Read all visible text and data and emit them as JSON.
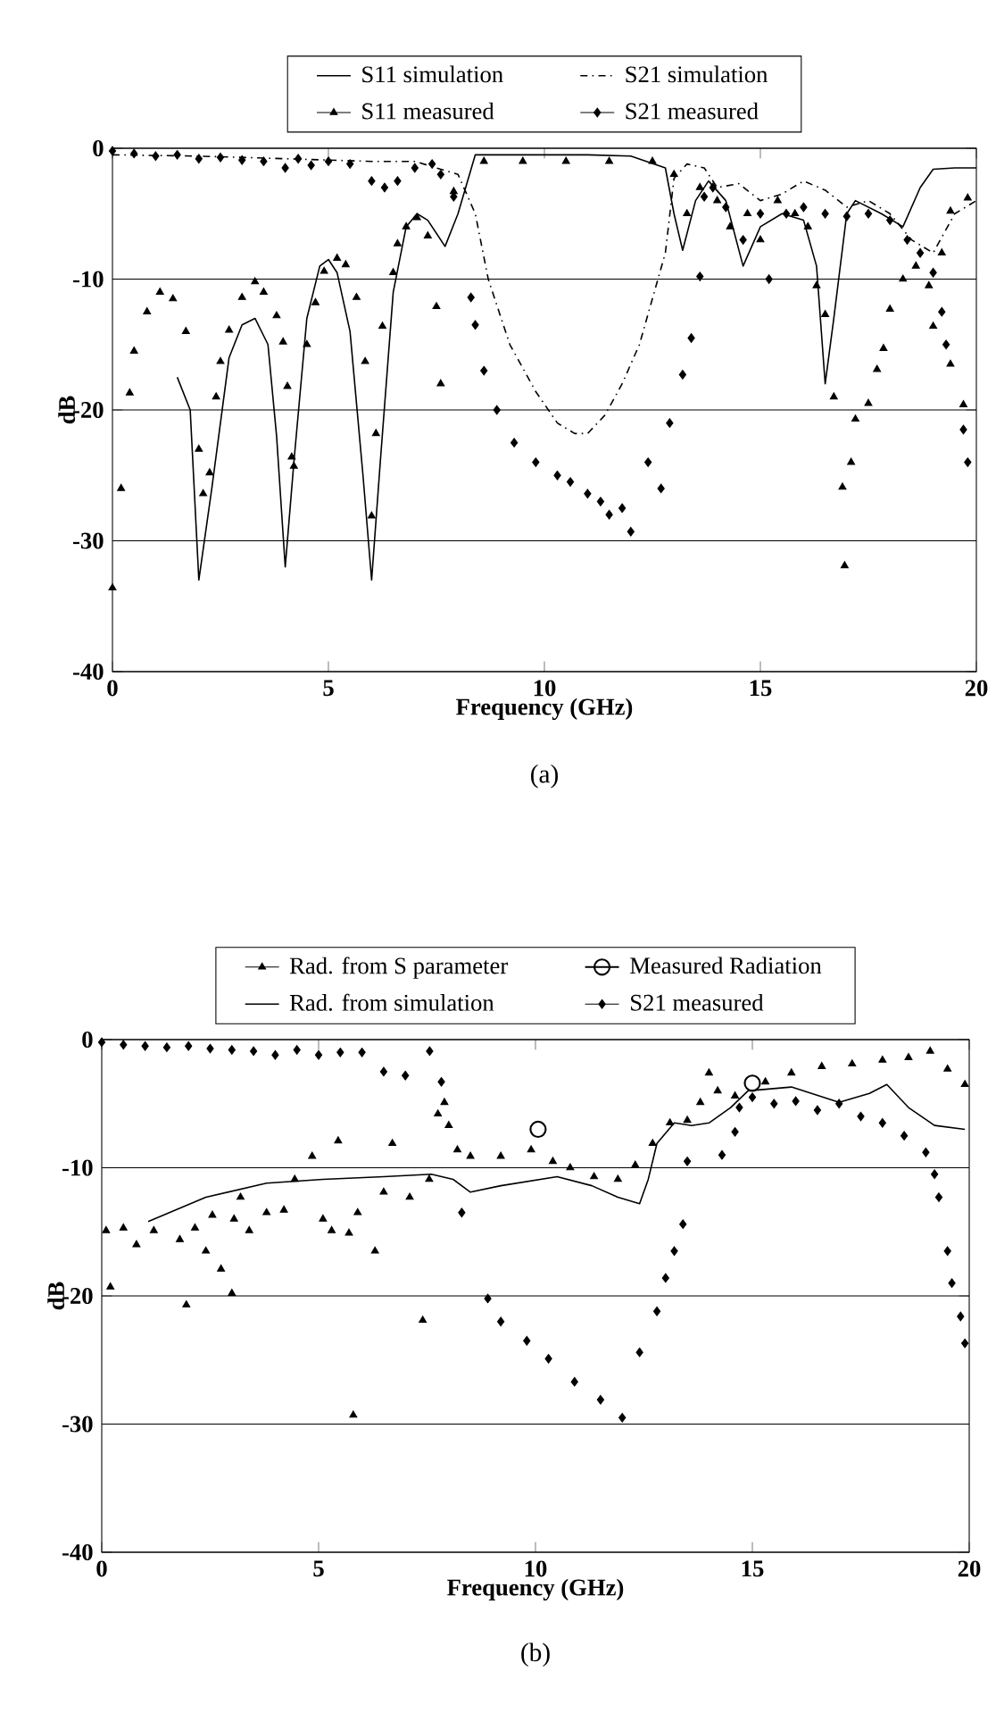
{
  "chart_data": [
    {
      "type": "line",
      "xlabel": "Frequency (GHz)",
      "ylabel": "dB",
      "xlim": [
        0,
        20
      ],
      "ylim": [
        -40,
        0
      ],
      "xticks": [
        0,
        5,
        10,
        15,
        20
      ],
      "yticks": [
        -40,
        -30,
        -20,
        -10,
        0
      ],
      "grid": "y",
      "legend": "top",
      "annotations": [
        "(a)"
      ],
      "series": [
        {
          "name": "S11 simulation",
          "line_style": "solid",
          "color": "#000000",
          "x": [
            1.5,
            1.8,
            2.0,
            2.3,
            2.7,
            3.0,
            3.3,
            3.6,
            3.8,
            4.0,
            4.2,
            4.5,
            4.8,
            5.0,
            5.2,
            5.5,
            5.8,
            6.0,
            6.2,
            6.5,
            6.8,
            7.05,
            7.3,
            7.7,
            8.0,
            8.4,
            9.0,
            10.0,
            11.0,
            12.0,
            12.8,
            13.0,
            13.2,
            13.5,
            13.8,
            14.2,
            14.6,
            15.0,
            15.5,
            16.0,
            16.3,
            16.5,
            16.7,
            17.0,
            17.2,
            17.8,
            18.3,
            18.7,
            19.0,
            19.5,
            20.0
          ],
          "values": [
            -17.5,
            -20,
            -33,
            -26,
            -16,
            -13.5,
            -13,
            -15,
            -22,
            -32,
            -24,
            -13,
            -9,
            -8.5,
            -9.5,
            -14,
            -25,
            -33,
            -24,
            -11,
            -6,
            -5,
            -5.5,
            -7.5,
            -5,
            -0.5,
            -0.5,
            -0.5,
            -0.5,
            -0.6,
            -1.5,
            -5,
            -7.8,
            -4,
            -2.5,
            -4,
            -9,
            -6,
            -5,
            -5.5,
            -9,
            -18,
            -13,
            -5,
            -4,
            -5,
            -6,
            -3,
            -1.6,
            -1.5,
            -1.5
          ]
        },
        {
          "name": "S21 simulation",
          "line_style": "dashed",
          "color": "#000000",
          "x": [
            0,
            2,
            4,
            6,
            7,
            8,
            8.4,
            8.7,
            9.2,
            9.8,
            10.3,
            10.7,
            11.0,
            11.4,
            11.8,
            12.2,
            12.5,
            12.8,
            13.0,
            13.3,
            13.7,
            14.0,
            14.5,
            15.0,
            15.5,
            16.0,
            16.5,
            17.0,
            17.5,
            18.0,
            18.5,
            19.0,
            19.5,
            20.0
          ],
          "values": [
            -0.5,
            -0.6,
            -0.8,
            -1.0,
            -1.0,
            -2,
            -5,
            -10,
            -15,
            -18.6,
            -21,
            -21.8,
            -21.8,
            -20.4,
            -18,
            -15,
            -11.5,
            -8,
            -2.3,
            -1.2,
            -1.5,
            -3,
            -2.7,
            -4,
            -3.5,
            -2.5,
            -3.2,
            -4.5,
            -4,
            -5,
            -7,
            -8,
            -5,
            -4
          ]
        },
        {
          "name": "S11 measured",
          "type": "scatter",
          "marker": "triangle",
          "color": "#000000",
          "x": [
            0.0,
            0.2,
            0.4,
            0.5,
            0.8,
            1.1,
            1.4,
            1.7,
            2.0,
            2.1,
            2.25,
            2.4,
            2.5,
            2.7,
            3.0,
            3.3,
            3.5,
            3.8,
            3.95,
            4.05,
            4.15,
            4.2,
            4.5,
            4.7,
            4.9,
            5.2,
            5.4,
            5.65,
            5.85,
            6.0,
            6.1,
            6.25,
            6.5,
            6.6,
            6.8,
            7.05,
            7.3,
            7.5,
            7.6,
            7.9,
            8.6,
            9.5,
            10.5,
            11.5,
            12.5,
            13.0,
            13.3,
            13.6,
            14.0,
            14.3,
            14.7,
            15.0,
            15.4,
            15.8,
            16.1,
            16.3,
            16.5,
            16.7,
            16.9,
            16.95,
            17.1,
            17.2,
            17.5,
            17.7,
            17.85,
            18.0,
            18.3,
            18.6,
            18.9,
            19.0,
            19.2,
            19.4,
            19.4,
            19.7,
            19.8
          ],
          "values": [
            -33.6,
            -26,
            -18.7,
            -15.5,
            -12.5,
            -11,
            -11.5,
            -14,
            -23,
            -26.4,
            -24.8,
            -19,
            -16.3,
            -13.9,
            -11.4,
            -10.2,
            -11,
            -12.8,
            -14.8,
            -18.2,
            -23.6,
            -24.3,
            -15,
            -11.8,
            -9.4,
            -8.4,
            -8.9,
            -11.4,
            -16.3,
            -28.1,
            -21.8,
            -13.6,
            -9.5,
            -7.3,
            -6,
            -5.3,
            -6.7,
            -12.1,
            -18,
            -3.3,
            -1,
            -1,
            -1,
            -1,
            -1,
            -2,
            -5,
            -3,
            -4,
            -6,
            -5,
            -7,
            -4,
            -5,
            -6,
            -10.5,
            -12.7,
            -19,
            -25.9,
            -31.9,
            -24,
            -20.7,
            -19.5,
            -16.9,
            -15.3,
            -12.3,
            -10,
            -9,
            -10.5,
            -13.6,
            -8,
            -16.5,
            -4.8,
            -19.6,
            -3.8
          ]
        },
        {
          "name": "S21 measured",
          "type": "scatter",
          "marker": "diamond",
          "color": "#000000",
          "x": [
            0,
            0.5,
            1,
            1.5,
            2,
            2.5,
            3,
            3.5,
            4,
            4.3,
            4.6,
            5,
            5.5,
            6,
            6.3,
            6.6,
            7,
            7.4,
            7.6,
            7.9,
            8.3,
            8.4,
            8.6,
            8.9,
            9.3,
            9.8,
            10.3,
            10.6,
            11.0,
            11.3,
            11.5,
            11.8,
            12.0,
            12.4,
            12.7,
            12.9,
            13.2,
            13.4,
            13.6,
            13.7,
            13.9,
            14.2,
            14.6,
            15.0,
            15.2,
            15.6,
            16.0,
            16.5,
            17.0,
            17.5,
            18.0,
            18.4,
            18.7,
            19.0,
            19.2,
            19.3,
            19.7,
            19.8
          ],
          "values": [
            -0.2,
            -0.4,
            -0.6,
            -0.5,
            -0.8,
            -0.7,
            -0.9,
            -1.0,
            -1.5,
            -0.8,
            -1.3,
            -1.0,
            -1.2,
            -2.5,
            -3,
            -2.5,
            -1.5,
            -1.2,
            -2,
            -3.7,
            -11.4,
            -13.5,
            -17,
            -20,
            -22.5,
            -24,
            -25,
            -25.5,
            -26.4,
            -27,
            -28,
            -27.5,
            -29.3,
            -24,
            -26,
            -21,
            -17.3,
            -14.5,
            -9.8,
            -3.7,
            -3,
            -4.5,
            -7,
            -5,
            -10,
            -5,
            -4.5,
            -5,
            -5.2,
            -5,
            -5.5,
            -7,
            -8,
            -9.5,
            -12.5,
            -15,
            -21.5,
            -24
          ]
        }
      ]
    },
    {
      "type": "line",
      "xlabel": "Frequency (GHz)",
      "ylabel": "dB",
      "xlim": [
        0,
        20
      ],
      "ylim": [
        -40,
        0
      ],
      "xticks": [
        0,
        5,
        10,
        15,
        20
      ],
      "yticks": [
        -40,
        -30,
        -20,
        -10,
        0
      ],
      "grid": "y",
      "legend": "top",
      "annotations": [
        "(b)"
      ],
      "series": [
        {
          "name": "Rad. from S parameter",
          "type": "scatter",
          "marker": "triangle",
          "color": "#000000",
          "x": [
            0.1,
            0.2,
            0.5,
            0.8,
            1.2,
            1.8,
            1.95,
            2.15,
            2.4,
            2.55,
            2.75,
            3.0,
            3.05,
            3.2,
            3.4,
            3.8,
            4.2,
            4.45,
            4.85,
            5.1,
            5.3,
            5.45,
            5.7,
            5.8,
            5.9,
            6.3,
            6.5,
            6.7,
            7.1,
            7.4,
            7.55,
            7.75,
            7.9,
            8.0,
            8.2,
            8.5,
            9.2,
            9.9,
            10.4,
            10.8,
            11.35,
            11.9,
            12.3,
            12.7,
            13.1,
            13.5,
            13.8,
            14.0,
            14.2,
            14.6,
            15.3,
            15.9,
            16.6,
            17.3,
            18.0,
            18.6,
            19.1,
            19.5,
            19.9
          ],
          "values": [
            -14.9,
            -19.3,
            -14.7,
            -16,
            -14.9,
            -15.6,
            -20.7,
            -14.7,
            -16.5,
            -13.7,
            -17.9,
            -19.8,
            -14,
            -12.3,
            -14.9,
            -13.5,
            -13.3,
            -10.9,
            -9.1,
            -14,
            -14.9,
            -7.9,
            -15.1,
            -29.3,
            -13.5,
            -16.5,
            -11.9,
            -8.1,
            -12.3,
            -21.9,
            -10.9,
            -5.8,
            -4.9,
            -6.7,
            -8.6,
            -9.1,
            -9.1,
            -8.6,
            -9.5,
            -10,
            -10.7,
            -10.9,
            -9.8,
            -8.1,
            -6.5,
            -6.3,
            -4.9,
            -2.6,
            -4,
            -4.4,
            -3.3,
            -2.6,
            -2.1,
            -1.9,
            -1.6,
            -1.4,
            -0.9,
            -2.3,
            -3.5
          ]
        },
        {
          "name": "Measured Radiation",
          "type": "scatter",
          "marker": "circle",
          "color": "#000000",
          "x": [
            10.06,
            15.0
          ],
          "values": [
            -7.0,
            -3.4
          ]
        },
        {
          "name": "Rad. from simulation",
          "line_style": "solid",
          "color": "#000000",
          "x": [
            1.07,
            2.4,
            3.8,
            5.1,
            6.5,
            7.6,
            8.1,
            8.5,
            9.2,
            10.5,
            11.3,
            11.9,
            12.4,
            12.6,
            12.8,
            13.2,
            13.6,
            14.0,
            14.5,
            14.9,
            15.9,
            17.0,
            17.7,
            18.1,
            18.6,
            19.2,
            19.9
          ],
          "values": [
            -14.2,
            -12.3,
            -11.2,
            -10.9,
            -10.7,
            -10.5,
            -10.9,
            -11.9,
            -11.4,
            -10.7,
            -11.4,
            -12.3,
            -12.8,
            -10.9,
            -8.1,
            -6.5,
            -6.7,
            -6.5,
            -5.3,
            -4,
            -3.7,
            -4.9,
            -4.2,
            -3.5,
            -5.3,
            -6.7,
            -7
          ]
        },
        {
          "name": "S21 measured",
          "type": "scatter",
          "marker": "diamond",
          "color": "#000000",
          "x": [
            0,
            0.5,
            1,
            1.5,
            2,
            2.5,
            3,
            3.5,
            4,
            4.5,
            5,
            5.5,
            6,
            6.5,
            7,
            7.56,
            7.83,
            8.3,
            8.9,
            9.2,
            9.8,
            10.3,
            10.9,
            11.5,
            12.0,
            12.4,
            12.8,
            13.0,
            13.2,
            13.4,
            13.5,
            14.3,
            14.6,
            14.7,
            15.0,
            15.5,
            16.0,
            16.5,
            17.0,
            17.5,
            18.0,
            18.5,
            19.0,
            19.2,
            19.3,
            19.5,
            19.6,
            19.8,
            19.9
          ],
          "values": [
            -0.2,
            -0.4,
            -0.5,
            -0.6,
            -0.5,
            -0.7,
            -0.8,
            -0.9,
            -1.2,
            -0.8,
            -1.2,
            -1.0,
            -1.0,
            -2.5,
            -2.8,
            -0.9,
            -3.3,
            -13.5,
            -20.2,
            -22,
            -23.5,
            -24.9,
            -26.7,
            -28.1,
            -29.5,
            -24.4,
            -21.2,
            -18.6,
            -16.5,
            -14.4,
            -9.5,
            -9,
            -7.2,
            -5.3,
            -4.5,
            -5,
            -4.8,
            -5.5,
            -5,
            -6,
            -6.5,
            -7.5,
            -8.8,
            -10.5,
            -12.3,
            -16.5,
            -19,
            -21.6,
            -23.7
          ]
        }
      ]
    }
  ]
}
